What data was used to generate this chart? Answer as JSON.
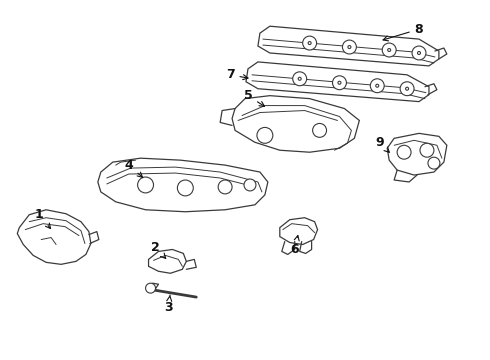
{
  "bg_color": "#ffffff",
  "line_color": "#3a3a3a",
  "label_color": "#111111",
  "lw": 0.9,
  "fig_w": 4.9,
  "fig_h": 3.6,
  "dpi": 100
}
